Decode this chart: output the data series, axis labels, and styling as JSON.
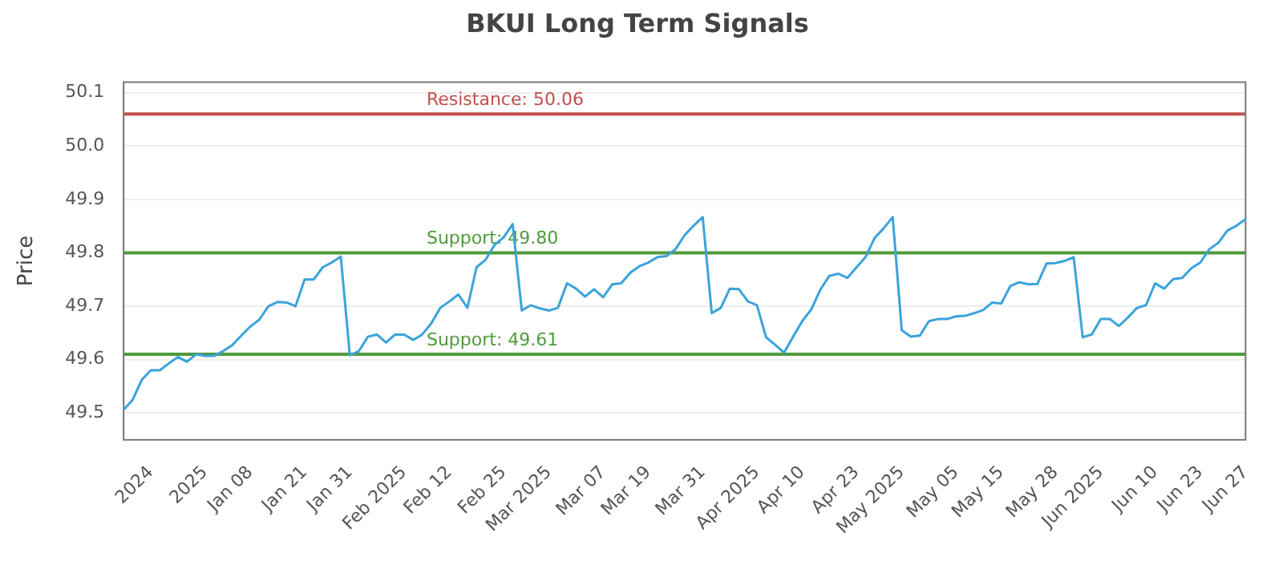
{
  "chart_data": {
    "type": "line",
    "title": "BKUI Long Term Signals",
    "ylabel": "Price",
    "categories": [
      null,
      null,
      null,
      "2024",
      null,
      null,
      null,
      null,
      null,
      "2025",
      null,
      null,
      null,
      null,
      "Jan 08",
      null,
      null,
      null,
      null,
      null,
      "Jan 21",
      null,
      null,
      null,
      null,
      "Jan 31",
      null,
      null,
      null,
      null,
      null,
      "Feb 2025",
      null,
      null,
      null,
      null,
      "Feb 12",
      null,
      null,
      null,
      null,
      null,
      "Feb 25",
      null,
      null,
      null,
      null,
      "Mar 2025",
      null,
      null,
      null,
      null,
      null,
      "Mar 07",
      null,
      null,
      null,
      null,
      "Mar 19",
      null,
      null,
      null,
      null,
      null,
      "Mar 31",
      null,
      null,
      null,
      null,
      null,
      "Apr 2025",
      null,
      null,
      null,
      null,
      "Apr 10",
      null,
      null,
      null,
      null,
      null,
      "Apr 23",
      null,
      null,
      null,
      null,
      "May 2025",
      null,
      null,
      null,
      null,
      null,
      "May 05",
      null,
      null,
      null,
      null,
      "May 15",
      null,
      null,
      null,
      null,
      null,
      "May 28",
      null,
      null,
      null,
      null,
      "Jun 2025",
      null,
      null,
      null,
      null,
      null,
      "Jun 10",
      null,
      null,
      null,
      null,
      "Jun 23",
      null,
      null,
      null,
      null,
      "Jun 27"
    ],
    "series": [
      {
        "color": "#3ba3db",
        "values": [
          49.506,
          49.525,
          49.562,
          49.58,
          49.58,
          49.593,
          49.605,
          49.596,
          49.61,
          49.607,
          49.607,
          49.616,
          49.627,
          49.645,
          49.662,
          49.675,
          49.7,
          49.708,
          49.707,
          49.7,
          49.75,
          49.75,
          49.773,
          49.782,
          49.793,
          49.608,
          49.616,
          49.643,
          49.647,
          49.632,
          49.647,
          49.647,
          49.637,
          49.647,
          49.668,
          49.697,
          49.709,
          49.722,
          49.697,
          49.773,
          49.787,
          49.815,
          49.829,
          49.854,
          49.692,
          49.702,
          49.696,
          49.692,
          49.697,
          49.743,
          49.733,
          49.718,
          49.732,
          49.717,
          49.741,
          49.743,
          49.763,
          49.775,
          49.782,
          49.792,
          49.794,
          49.807,
          49.833,
          49.851,
          49.867,
          49.687,
          49.697,
          49.733,
          49.732,
          49.709,
          49.702,
          49.642,
          49.628,
          49.613,
          49.643,
          49.672,
          49.694,
          49.731,
          49.757,
          49.761,
          49.753,
          49.773,
          49.792,
          49.828,
          49.846,
          49.867,
          49.655,
          49.643,
          49.645,
          49.672,
          49.676,
          49.676,
          49.681,
          49.682,
          49.687,
          49.693,
          49.707,
          49.705,
          49.738,
          49.745,
          49.741,
          49.742,
          49.78,
          49.781,
          49.785,
          49.792,
          49.642,
          49.647,
          49.676,
          49.676,
          49.663,
          49.679,
          49.697,
          49.702,
          49.743,
          49.733,
          49.751,
          49.753,
          49.771,
          49.782,
          49.807,
          49.819,
          49.842,
          49.851,
          49.863
        ]
      }
    ],
    "ylim": [
      49.45,
      50.12
    ],
    "yticks": [
      49.5,
      49.6,
      49.7,
      49.8,
      49.9,
      {
        "value": 50,
        "label": "50.0"
      },
      50.1
    ],
    "ref_lines": [
      {
        "axis": "y",
        "value": 50.06,
        "label": "Resistance: 50.06",
        "color": "#c0504d"
      },
      {
        "axis": "y",
        "value": 49.8,
        "label": "Support: 49.80",
        "color": "#4f9a3a"
      },
      {
        "axis": "y",
        "value": 49.61,
        "label": "Support: 49.61",
        "color": "#4f9a3a"
      }
    ],
    "grid": "y",
    "legend": false,
    "marker": "none",
    "line_style": "solid"
  }
}
